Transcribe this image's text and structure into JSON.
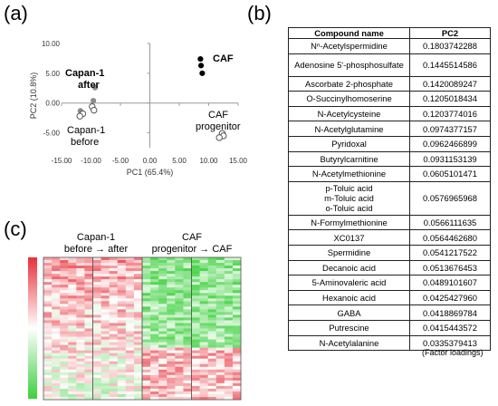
{
  "panel_labels": {
    "a": "(a)",
    "b": "(b)",
    "c": "(c)"
  },
  "chart_data": [
    {
      "type": "scatter",
      "xlabel": "PC1 (65.4%)",
      "ylabel": "PC2 (10.8%)",
      "xlim": [
        -15,
        15
      ],
      "ylim": [
        -7.5,
        10
      ],
      "xticks": [
        "-15.00",
        "-10.00",
        "-5.00",
        "0.00",
        "5.00",
        "10.00",
        "15.00"
      ],
      "yticks": [
        "10.00",
        "5.00",
        "0.00",
        "-5.00"
      ],
      "grid": false,
      "series": [
        {
          "name": "Capan-1 after",
          "style": "gray-filled",
          "x": [
            -9.3,
            -9.6,
            -11.8
          ],
          "y": [
            2.6,
            0.4,
            -1.3
          ]
        },
        {
          "name": "Capan-1 before",
          "style": "open",
          "x": [
            -9.8,
            -9.5,
            -11.4,
            -11.9
          ],
          "y": [
            -0.6,
            -1.2,
            -1.8,
            -2.2
          ]
        },
        {
          "name": "CAF",
          "style": "black-filled",
          "x": [
            8.6,
            8.7,
            8.9
          ],
          "y": [
            7.4,
            6.3,
            5.0
          ]
        },
        {
          "name": "CAF progenitor",
          "style": "open",
          "x": [
            12.3,
            12.5,
            11.8
          ],
          "y": [
            -5.1,
            -5.5,
            -5.8
          ]
        }
      ],
      "annotations": {
        "capan_after": [
          "Capan-1",
          "after"
        ],
        "capan_before": [
          "Capan-1",
          "before"
        ],
        "caf": "CAF",
        "caf_progenitor": [
          "CAF",
          "progenitor"
        ]
      }
    },
    {
      "type": "table",
      "columns": [
        "Compound name",
        "PC2"
      ],
      "rows": [
        [
          "Nⁿ-Acetylspermidine",
          "0.1803742288"
        ],
        [
          "Adenosine 5'-phosphosulfate",
          "0.1445514586"
        ],
        [
          "Ascorbate 2-phosphate",
          "0.1420089247"
        ],
        [
          "O-Succinylhomoserine",
          "0.1205018434"
        ],
        [
          "N-Acetylcysteine",
          "0.1203774016"
        ],
        [
          "N-Acetylglutamine",
          "0.0974377157"
        ],
        [
          "Pyridoxal",
          "0.0962466899"
        ],
        [
          "Butyrylcarnitine",
          "0.0931153139"
        ],
        [
          "N-Acetylmethionine",
          "0.0605101471"
        ],
        [
          "p-Toluic acid\nm-Toluic acid\no-Toluic acid",
          "0.0576965968"
        ],
        [
          "N-Formylmethionine",
          "0.0566111635"
        ],
        [
          "XC0137",
          "0.0564462680"
        ],
        [
          "Spermidine",
          "0.0541217522"
        ],
        [
          "Decanoic acid",
          "0.0513676453"
        ],
        [
          "5-Aminovaleric acid",
          "0.0489101607"
        ],
        [
          "Hexanoic acid",
          "0.0425427960"
        ],
        [
          "GABA",
          "0.0418869784"
        ],
        [
          "Putrescine",
          "0.0415443572"
        ],
        [
          "N-Acetylalanine",
          "0.0335379413"
        ]
      ],
      "caption": "(Factor loadings)"
    },
    {
      "type": "heatmap",
      "colors": {
        "high": "#e8303a",
        "mid": "#ffffff",
        "low": "#3cd03c"
      },
      "groups": [
        {
          "label_lines": [
            "Capan-1",
            "before → after"
          ]
        },
        {
          "label_lines": [
            "CAF",
            "progenitor → CAF"
          ]
        }
      ]
    }
  ]
}
